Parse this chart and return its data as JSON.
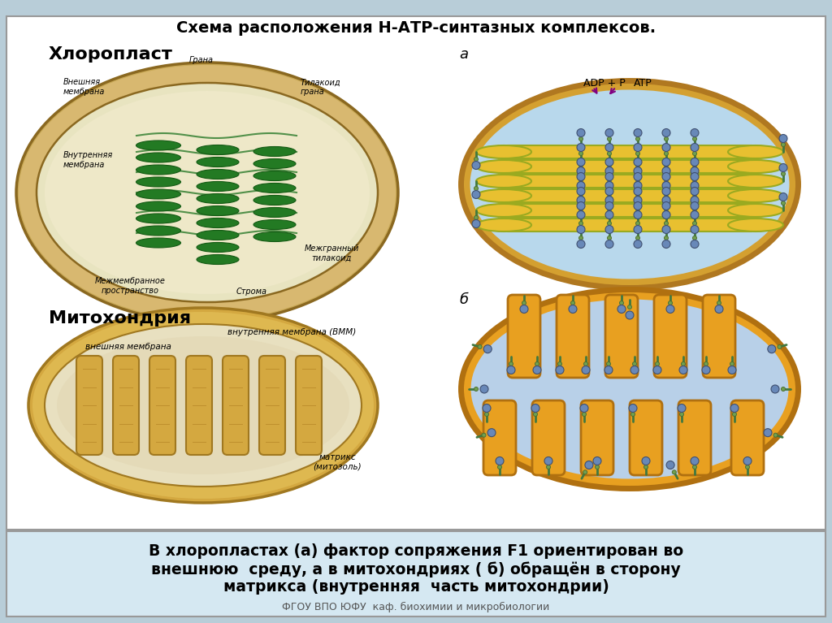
{
  "title": "Схема расположения Н-АТР-синтазных комплексов.",
  "bottom_text_line1": "В хлоропластах (а) фактор сопряжения F1 ориентирован во",
  "bottom_text_line2": "внешнюю  среду, а в митохондриях ( б) обращён в сторону",
  "bottom_text_line3": "матрикса (внутренняя  часть митохондрии)",
  "footer": "ФГОУ ВПО ЮФУ  каф. биохимии и микробиологии",
  "label_a": "а",
  "label_b": "б",
  "label_chloroplast": "Хлоропласт",
  "label_mitochondria": "Митохондрия",
  "bg_color": "#b8cdd8",
  "top_panel_color": "#ffffff",
  "bottom_panel_color": "#d0e8f0"
}
